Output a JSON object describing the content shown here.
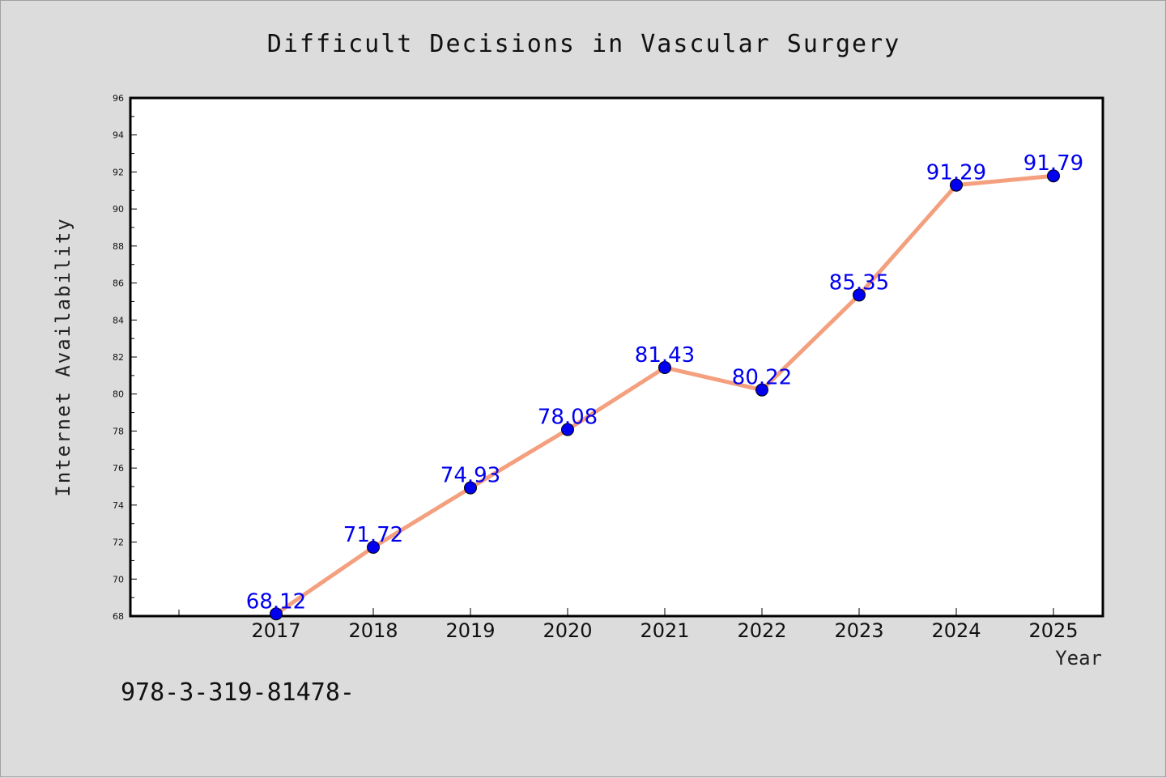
{
  "chart_data": {
    "type": "line",
    "title": "Difficult Decisions in Vascular Surgery",
    "xlabel": "Year",
    "ylabel": "Internet Availability",
    "categories": [
      "2017",
      "2018",
      "2019",
      "2020",
      "2021",
      "2022",
      "2023",
      "2024",
      "2025"
    ],
    "series": [
      {
        "values": [
          68.12,
          71.72,
          74.93,
          78.08,
          81.43,
          80.22,
          85.35,
          91.29,
          91.79
        ],
        "data_labels": [
          "68.12",
          "71.72",
          "74.93",
          "78.08",
          "81.43",
          "80.22",
          "85.35",
          "91.29",
          "91.79"
        ],
        "line_color": "#f4a07e",
        "marker_color": "#0000ee"
      }
    ],
    "ylim": [
      68,
      96
    ],
    "yticks": [
      "68",
      "70",
      "72",
      "74",
      "76",
      "78",
      "80",
      "82",
      "84",
      "86",
      "88",
      "90",
      "92",
      "94",
      "96"
    ],
    "grid": false,
    "legend": "none"
  },
  "footnote": "978-3-319-81478-",
  "colors": {
    "background": "#dcdcdc",
    "plot_area": "#ffffff",
    "line": "#f4a07e",
    "marker": "#0000ee",
    "data_label": "#0000ee"
  }
}
